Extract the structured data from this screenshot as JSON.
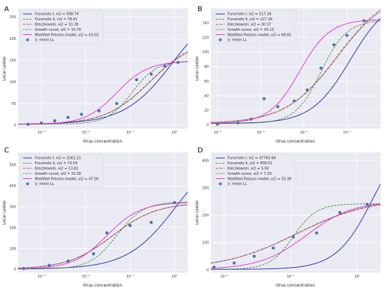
{
  "chart_data": [
    {
      "panel": "A",
      "type": "line",
      "xscale": "log",
      "xlim": [
        0.0003,
        2.0
      ],
      "ylim": [
        -8,
        270
      ],
      "xticks": [
        0.001,
        0.01,
        0.1,
        1
      ],
      "xtick_labels": [
        "10⁻³",
        "10⁻²",
        "10⁻¹",
        "10⁰"
      ],
      "yticks": [
        0,
        50,
        100,
        150,
        200,
        250
      ],
      "xlabel": "Virus concentration",
      "ylabel": "Local Lesion",
      "legend": "top-left",
      "series": [
        {
          "name": "Furumoto I, xi2 = 598.74",
          "style": "solid",
          "color": "#1a1ab3",
          "curve": {
            "A": 290,
            "x0": 0.95,
            "s": 0.55
          }
        },
        {
          "name": "Furumoto II, xi2 = 78.41",
          "style": "dashed",
          "color": "#2e8b2e",
          "curve": {
            "A": 147,
            "x0": 0.11,
            "s": 0.28
          }
        },
        {
          "name": "Kleczkowski, xi2 = 10.39",
          "style": "dashdot",
          "color": "#cc2222",
          "curve": {
            "A": 198,
            "x0": 0.28,
            "s": 0.5
          }
        },
        {
          "name": "Growth curve, xi2 = 10.70",
          "style": "dotted",
          "color": "#333333",
          "curve": {
            "A": 196,
            "x0": 0.28,
            "s": 0.5
          }
        },
        {
          "name": "Modified Poisson model, xi2 = 43.03",
          "style": "solid",
          "color": "#dd22dd",
          "curve": {
            "A": 146,
            "x0": 0.05,
            "s": 0.35
          }
        }
      ],
      "points_label": "ŷ: mean LL",
      "points": {
        "x": [
          0.0005,
          0.001,
          0.002,
          0.004,
          0.008,
          0.02,
          0.05,
          0.14,
          0.3,
          0.6,
          1.2
        ],
        "y": [
          2,
          5,
          10,
          18,
          25,
          33,
          50,
          105,
          118,
          137,
          145
        ]
      }
    },
    {
      "panel": "B",
      "type": "line",
      "xscale": "log",
      "xlim": [
        7e-05,
        0.6
      ],
      "ylim": [
        -5,
        160
      ],
      "xticks": [
        0.0001,
        0.001,
        0.01,
        0.1
      ],
      "xtick_labels": [
        "10⁻⁴",
        "10⁻³",
        "10⁻²",
        "10⁻¹"
      ],
      "yticks": [
        0,
        20,
        40,
        60,
        80,
        100,
        120,
        140
      ],
      "xlabel": "Virus concentration",
      "ylabel": "Local Lesion",
      "legend": "top-left",
      "series": [
        {
          "name": "Furumoto I, xi2 = 517.34",
          "style": "solid",
          "color": "#1a1ab3",
          "curve": {
            "A": 175,
            "x0": 0.12,
            "s": 0.45
          }
        },
        {
          "name": "Furumoto II, xi2 = 127.18",
          "style": "dashed",
          "color": "#2e8b2e",
          "curve": {
            "A": 142,
            "x0": 0.025,
            "s": 0.3
          }
        },
        {
          "name": "Kleczkowski, xi2 = 30.37",
          "style": "dashdot",
          "color": "#cc2222",
          "curve": {
            "A": 185,
            "x0": 0.06,
            "s": 0.6
          }
        },
        {
          "name": "Growth curve, xi2 = 34.13",
          "style": "dotted",
          "color": "#333333",
          "curve": {
            "A": 183,
            "x0": 0.06,
            "s": 0.6
          }
        },
        {
          "name": "Modified Poisson model, xi2 = 68.81",
          "style": "solid",
          "color": "#dd22dd",
          "curve": {
            "A": 143,
            "x0": 0.008,
            "s": 0.35
          }
        }
      ],
      "points_label": "ŷ: mean LL",
      "points": {
        "x": [
          0.0001,
          0.0003,
          0.0006,
          0.0012,
          0.0025,
          0.006,
          0.012,
          0.025,
          0.05,
          0.1,
          0.25
        ],
        "y": [
          1,
          3,
          8,
          36,
          25,
          33,
          48,
          78,
          110,
          123,
          143
        ]
      }
    },
    {
      "panel": "C",
      "type": "line",
      "xscale": "log",
      "xlim": [
        0.0003,
        2.0
      ],
      "ylim": [
        -15,
        560
      ],
      "xticks": [
        0.001,
        0.01,
        0.1,
        1
      ],
      "xtick_labels": [
        "10⁻³",
        "10⁻²",
        "10⁻¹",
        "10⁰"
      ],
      "yticks": [
        0,
        100,
        200,
        300,
        400,
        500
      ],
      "xlabel": "Virus concentration",
      "ylabel": "Local Lesion",
      "legend": "top-left",
      "series": [
        {
          "name": "Furumoto I, xi2 = 2162.23",
          "style": "solid",
          "color": "#1a1ab3",
          "curve": {
            "A": 600,
            "x0": 1.1,
            "s": 0.55
          }
        },
        {
          "name": "Furumoto II, xi2 = 73.54",
          "style": "dashed",
          "color": "#2e8b2e",
          "curve": {
            "A": 322,
            "x0": 0.05,
            "s": 0.3
          }
        },
        {
          "name": "Kleczkowski, xi2 = 13.81",
          "style": "dashdot",
          "color": "#cc2222",
          "curve": {
            "A": 318,
            "x0": 0.04,
            "s": 0.5
          }
        },
        {
          "name": "Growth curve, xi2 = 15.30",
          "style": "dotted",
          "color": "#333333",
          "curve": {
            "A": 318,
            "x0": 0.04,
            "s": 0.5
          }
        },
        {
          "name": "Modified Poisson model, xi2 = 47.56",
          "style": "solid",
          "color": "#dd22dd",
          "curve": {
            "A": 320,
            "x0": 0.03,
            "s": 0.38
          }
        }
      ],
      "points_label": "ŷ: mean LL",
      "points": {
        "x": [
          0.0004,
          0.0015,
          0.004,
          0.015,
          0.03,
          0.1,
          0.3,
          1.0
        ],
        "y": [
          5,
          20,
          40,
          75,
          175,
          210,
          225,
          320
        ]
      }
    },
    {
      "panel": "D",
      "type": "line",
      "xscale": "log",
      "xlim": [
        0.0004,
        50
      ],
      "ylim": [
        -10,
        430
      ],
      "xticks": [
        0.001,
        0.1,
        10
      ],
      "xtick_labels": [
        "10⁻³",
        "10⁻¹",
        "10¹"
      ],
      "yticks": [
        0,
        100,
        200,
        300,
        400
      ],
      "xlabel": "Virus concentration",
      "ylabel": "Local Lesion",
      "legend": "top-left",
      "series": [
        {
          "name": "Furumoto I, xi2 = 47763.64",
          "style": "solid",
          "color": "#1a1ab3",
          "curve": {
            "A": 520,
            "x0": 30,
            "s": 0.55
          }
        },
        {
          "name": "Furumoto II, xi2 = 858.51",
          "style": "dashed",
          "color": "#2e8b2e",
          "curve": {
            "A": 240,
            "x0": 0.12,
            "s": 0.35
          }
        },
        {
          "name": "Kleczkowski, xi2 = 5.50",
          "style": "dashdot",
          "color": "#cc2222",
          "curve": {
            "A": 260,
            "x0": 0.15,
            "s": 1.1
          }
        },
        {
          "name": "Growth curve, xi2 = 7.20",
          "style": "dotted",
          "color": "#333333",
          "curve": {
            "A": 262,
            "x0": 0.15,
            "s": 1.1
          }
        },
        {
          "name": "Modified Poisson model, xi2 = 33.39",
          "style": "solid",
          "color": "#dd22dd",
          "curve": {
            "A": 250,
            "x0": 0.3,
            "s": 0.7
          }
        }
      ],
      "points_label": "ŷ: mean LL",
      "points": {
        "x": [
          0.0005,
          0.002,
          0.008,
          0.03,
          0.12,
          0.6,
          3.0,
          20
        ],
        "y": [
          10,
          25,
          50,
          80,
          120,
          135,
          210,
          240
        ]
      }
    }
  ]
}
